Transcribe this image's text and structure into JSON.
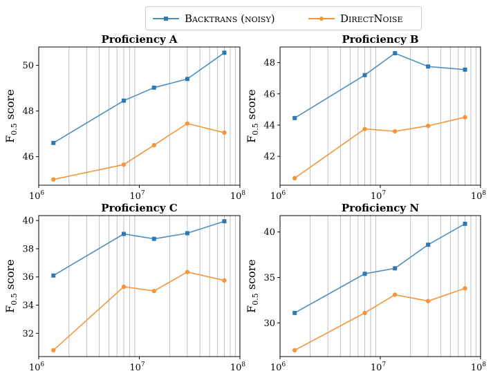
{
  "legend": {
    "series": [
      {
        "name": "Backtrans (noisy)",
        "color": "#4c8fc0",
        "marker": "square"
      },
      {
        "name": "DirectNoise",
        "color": "#f5953a",
        "marker": "circle"
      }
    ]
  },
  "chart_data": [
    {
      "type": "line",
      "title": "Proficiency A",
      "ylabel": "F0.5 score",
      "xscale": "log",
      "xlim": [
        1000000,
        100000000
      ],
      "ylim": [
        44.75,
        50.8
      ],
      "x": [
        1400000,
        7000000,
        14000000,
        30000000,
        70000000
      ],
      "xticks": [
        {
          "value": 1000000,
          "base": "10",
          "exp": "6"
        },
        {
          "value": 10000000,
          "base": "10",
          "exp": "7"
        },
        {
          "value": 100000000,
          "base": "10",
          "exp": "8"
        }
      ],
      "yticks": [
        46,
        48,
        50
      ],
      "grid": "x-minor",
      "series": [
        {
          "name": "Backtrans (noisy)",
          "values": [
            46.6,
            48.45,
            49.02,
            49.4,
            50.55
          ]
        },
        {
          "name": "DirectNoise",
          "values": [
            45.0,
            45.65,
            46.5,
            47.45,
            47.05
          ]
        }
      ]
    },
    {
      "type": "line",
      "title": "Proficiency B",
      "ylabel": "F0.5 score",
      "xscale": "log",
      "xlim": [
        1000000,
        100000000
      ],
      "ylim": [
        40.15,
        49.0
      ],
      "x": [
        1400000,
        7000000,
        14000000,
        30000000,
        70000000
      ],
      "xticks": [
        {
          "value": 1000000,
          "base": "10",
          "exp": "6"
        },
        {
          "value": 10000000,
          "base": "10",
          "exp": "7"
        },
        {
          "value": 100000000,
          "base": "10",
          "exp": "8"
        }
      ],
      "yticks": [
        42,
        44,
        46,
        48
      ],
      "grid": "x-minor",
      "series": [
        {
          "name": "Backtrans (noisy)",
          "values": [
            44.45,
            47.2,
            48.6,
            47.75,
            47.55
          ]
        },
        {
          "name": "DirectNoise",
          "values": [
            40.6,
            43.75,
            43.6,
            43.95,
            44.5
          ]
        }
      ]
    },
    {
      "type": "line",
      "title": "Proficiency C",
      "ylabel": "F0.5 score",
      "xscale": "log",
      "xlim": [
        1000000,
        100000000
      ],
      "ylim": [
        30.35,
        40.35
      ],
      "x": [
        1400000,
        7000000,
        14000000,
        30000000,
        70000000
      ],
      "xticks": [
        {
          "value": 1000000,
          "base": "10",
          "exp": "6"
        },
        {
          "value": 10000000,
          "base": "10",
          "exp": "7"
        },
        {
          "value": 100000000,
          "base": "10",
          "exp": "8"
        }
      ],
      "yticks": [
        32,
        34,
        36,
        38,
        40
      ],
      "grid": "x-minor",
      "series": [
        {
          "name": "Backtrans (noisy)",
          "values": [
            36.1,
            39.05,
            38.7,
            39.1,
            39.95
          ]
        },
        {
          "name": "DirectNoise",
          "values": [
            30.8,
            35.3,
            35.0,
            36.35,
            35.75
          ]
        }
      ]
    },
    {
      "type": "line",
      "title": "Proficiency N",
      "ylabel": "F0.5 score",
      "xscale": "log",
      "xlim": [
        1000000,
        100000000
      ],
      "ylim": [
        26.3,
        41.8
      ],
      "x": [
        1400000,
        7000000,
        14000000,
        30000000,
        70000000
      ],
      "xticks": [
        {
          "value": 1000000,
          "base": "10",
          "exp": "6"
        },
        {
          "value": 10000000,
          "base": "10",
          "exp": "7"
        },
        {
          "value": 100000000,
          "base": "10",
          "exp": "8"
        }
      ],
      "yticks": [
        30,
        35,
        40
      ],
      "grid": "x-minor",
      "series": [
        {
          "name": "Backtrans (noisy)",
          "values": [
            31.1,
            35.4,
            36.0,
            38.6,
            40.9
          ]
        },
        {
          "name": "DirectNoise",
          "values": [
            27.0,
            31.1,
            33.1,
            32.4,
            33.8
          ]
        }
      ]
    }
  ]
}
